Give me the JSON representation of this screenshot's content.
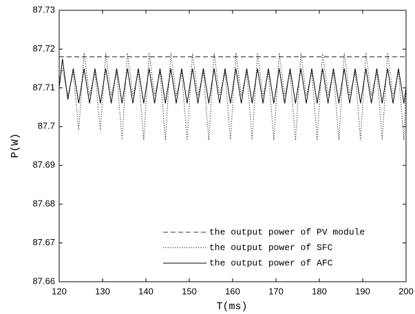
{
  "chart_data": {
    "type": "line",
    "xlabel": "T(ms)",
    "ylabel": "P(W)",
    "xlim": [
      120,
      200
    ],
    "xticks": [
      120,
      130,
      140,
      150,
      160,
      170,
      180,
      190,
      200
    ],
    "ylim": [
      87.66,
      87.73
    ],
    "yticks": [
      87.66,
      87.67,
      87.68,
      87.69,
      87.7,
      87.71,
      87.72,
      87.73
    ],
    "legend": "lower right",
    "x": [
      120,
      120.75,
      122,
      123.25,
      124.5,
      125.75,
      127,
      128.25,
      129.5,
      130.75,
      132,
      133.25,
      134.5,
      135.75,
      137,
      138.25,
      139.5,
      140.75,
      142,
      143.25,
      144.5,
      145.75,
      147,
      148.25,
      149.5,
      150.75,
      152,
      153.25,
      154.5,
      155.75,
      157,
      158.25,
      159.5,
      160.75,
      162,
      163.25,
      164.5,
      165.75,
      167,
      168.25,
      169.5,
      170.75,
      172,
      173.25,
      174.5,
      175.75,
      177,
      178.25,
      179.5,
      180.75,
      182,
      183.25,
      184.5,
      185.75,
      187,
      188.25,
      189.5,
      190.75,
      192,
      193.25,
      194.5,
      195.75,
      197,
      198.25,
      199.5,
      200
    ],
    "series": [
      {
        "name": "the output power of PV module",
        "color": "#333333",
        "linestyle": "dashed",
        "x": [
          120,
          200
        ],
        "values": [
          87.718,
          87.718
        ]
      },
      {
        "name": "the output power of SFC",
        "color": "#222222",
        "linestyle": "dotted",
        "values": [
          87.712,
          87.715,
          87.708,
          87.714,
          87.699,
          87.719,
          87.708,
          87.714,
          87.699,
          87.719,
          87.708,
          87.714,
          87.6965,
          87.719,
          87.708,
          87.714,
          87.6965,
          87.719,
          87.708,
          87.714,
          87.6965,
          87.719,
          87.708,
          87.714,
          87.6965,
          87.719,
          87.708,
          87.714,
          87.6965,
          87.719,
          87.708,
          87.714,
          87.6965,
          87.719,
          87.708,
          87.714,
          87.6965,
          87.719,
          87.708,
          87.714,
          87.6965,
          87.719,
          87.708,
          87.714,
          87.6965,
          87.719,
          87.708,
          87.714,
          87.6965,
          87.719,
          87.708,
          87.714,
          87.6965,
          87.719,
          87.708,
          87.714,
          87.6965,
          87.719,
          87.708,
          87.714,
          87.6965,
          87.719,
          87.708,
          87.714,
          87.6965,
          87.71
        ]
      },
      {
        "name": "the output power of AFC",
        "color": "#000000",
        "linestyle": "solid",
        "values": [
          87.71,
          87.7175,
          87.707,
          87.715,
          87.706,
          87.715,
          87.706,
          87.715,
          87.706,
          87.715,
          87.706,
          87.715,
          87.706,
          87.715,
          87.706,
          87.715,
          87.706,
          87.715,
          87.706,
          87.715,
          87.706,
          87.715,
          87.706,
          87.715,
          87.706,
          87.715,
          87.706,
          87.715,
          87.706,
          87.715,
          87.706,
          87.715,
          87.706,
          87.715,
          87.706,
          87.715,
          87.706,
          87.715,
          87.706,
          87.715,
          87.706,
          87.715,
          87.706,
          87.715,
          87.706,
          87.715,
          87.706,
          87.715,
          87.706,
          87.715,
          87.706,
          87.715,
          87.706,
          87.715,
          87.706,
          87.715,
          87.706,
          87.715,
          87.706,
          87.715,
          87.706,
          87.715,
          87.706,
          87.715,
          87.706,
          87.71
        ]
      }
    ]
  }
}
